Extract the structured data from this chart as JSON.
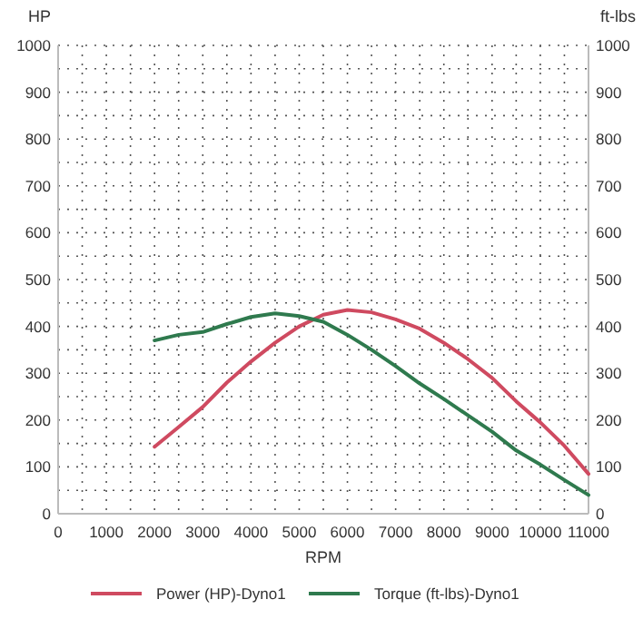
{
  "chart_data": {
    "type": "line",
    "xlabel": "RPM",
    "ylabel": "HP",
    "y2label": "ft-lbs",
    "x": [
      2000,
      2500,
      3000,
      3500,
      4000,
      4500,
      5000,
      5500,
      6000,
      6500,
      7000,
      7500,
      8000,
      8500,
      9000,
      9500,
      10000,
      10500,
      11000
    ],
    "series": [
      {
        "name": "Power (HP)-Dyno1",
        "color": "#cf4a60",
        "values": [
          143,
          185,
          228,
          280,
          325,
          365,
          400,
          425,
          435,
          430,
          415,
          395,
          365,
          330,
          290,
          240,
          195,
          145,
          85
        ]
      },
      {
        "name": "Torque (ft-lbs)-Dyno1",
        "color": "#2f7a4e",
        "values": [
          370,
          382,
          388,
          405,
          420,
          428,
          422,
          410,
          382,
          350,
          315,
          278,
          245,
          210,
          175,
          135,
          105,
          72,
          40
        ]
      }
    ],
    "xlim": [
      0,
      11000
    ],
    "ylim": [
      0,
      1000
    ],
    "y2lim": [
      0,
      1000
    ],
    "xticks": [
      0,
      {
        "value": 500,
        "label": null
      },
      1000,
      {
        "value": 1500,
        "label": null
      },
      2000,
      {
        "value": 2500,
        "label": null
      },
      3000,
      {
        "value": 3500,
        "label": null
      },
      4000,
      {
        "value": 4500,
        "label": null
      },
      5000,
      {
        "value": 5500,
        "label": null
      },
      6000,
      {
        "value": 6500,
        "label": null
      },
      7000,
      {
        "value": 7500,
        "label": null
      },
      8000,
      {
        "value": 8500,
        "label": null
      },
      9000,
      {
        "value": 9500,
        "label": null
      },
      10000,
      {
        "value": 10500,
        "label": null
      },
      11000
    ],
    "yticks": [
      0,
      {
        "value": 50,
        "label": null
      },
      100,
      {
        "value": 150,
        "label": null
      },
      200,
      {
        "value": 250,
        "label": null
      },
      300,
      {
        "value": 350,
        "label": null
      },
      400,
      {
        "value": 450,
        "label": null
      },
      500,
      {
        "value": 550,
        "label": null
      },
      600,
      {
        "value": 650,
        "label": null
      },
      700,
      {
        "value": 750,
        "label": null
      },
      800,
      {
        "value": 850,
        "label": null
      },
      900,
      {
        "value": 950,
        "label": null
      },
      1000
    ],
    "y2ticks": [
      0,
      100,
      200,
      300,
      400,
      500,
      600,
      700,
      800,
      900,
      1000
    ],
    "grid": true,
    "line_style": "solid",
    "marker": "none",
    "legend": "bottom"
  }
}
